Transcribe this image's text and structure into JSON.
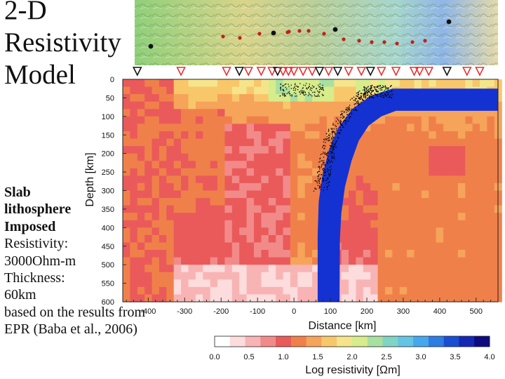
{
  "slide": {
    "title_lines": [
      "2-D",
      "Resistivity",
      "Model"
    ],
    "bold_lines": [
      "Slab",
      "lithosphere",
      "Imposed"
    ],
    "plain_lines": [
      "Resistivity:",
      "3000Ohm-m",
      "Thickness:",
      "60km",
      "based on the results from",
      "EPR (Baba et al., 2006)"
    ]
  },
  "colors": {
    "slab": "#1432d2",
    "station_red": "#e83030",
    "station_black": "#111111",
    "hypocenter": "#000000",
    "colorbar": [
      "#ffffff",
      "#fcdcdc",
      "#f8b4b4",
      "#f28a8a",
      "#ea5a5a",
      "#f0804a",
      "#f5a45a",
      "#f8c76a",
      "#f5e48a",
      "#d7ec8a",
      "#a8e0a0",
      "#80d4c4",
      "#64c4e4",
      "#46a8ec",
      "#2c7ce4",
      "#1a4ed2",
      "#1428b4",
      "#0e0a80"
    ]
  },
  "chart_data": {
    "type": "heatmap",
    "xlabel": "Distance [km]",
    "ylabel": "Depth [km]",
    "x_ticks": [
      "-400",
      "-300",
      "-200",
      "-100",
      "0",
      "100",
      "200",
      "300",
      "400",
      "500"
    ],
    "y_ticks": [
      "0",
      "50",
      "100",
      "150",
      "200",
      "250",
      "300",
      "350",
      "400",
      "450",
      "500",
      "550",
      "600"
    ],
    "xlim": [
      -470,
      560
    ],
    "ylim": [
      600,
      0
    ],
    "colorbar": {
      "label": "Log resistivity [Ωm]",
      "ticks": [
        "0.0",
        "0.5",
        "1.0",
        "1.5",
        "2.0",
        "2.5",
        "3.0",
        "3.5",
        "4.0"
      ],
      "range": [
        0.0,
        4.0
      ]
    },
    "slab": {
      "log_resistivity": 3.48,
      "thickness_km": 60,
      "bottom_x_km": [
        65,
        125
      ],
      "surface_x_km": [
        170,
        560
      ]
    },
    "body_regions": [
      {
        "x": [
          -470,
          -330
        ],
        "depth": [
          0,
          600
        ],
        "value": 1.1
      },
      {
        "x": [
          -330,
          -190
        ],
        "depth": [
          80,
          300
        ],
        "value": 1.15
      },
      {
        "x": [
          -190,
          -20
        ],
        "depth": [
          120,
          480
        ],
        "value": 0.9
      },
      {
        "x": [
          -20,
          60
        ],
        "depth": [
          200,
          500
        ],
        "value": 1.3
      },
      {
        "x": [
          230,
          560
        ],
        "depth": [
          150,
          600
        ],
        "value": 1.25
      },
      {
        "x": [
          360,
          460
        ],
        "depth": [
          170,
          260
        ],
        "value": 1.0
      }
    ],
    "stations": [
      {
        "x": -430,
        "type": "black"
      },
      {
        "x": -310,
        "type": "red"
      },
      {
        "x": -185,
        "type": "red"
      },
      {
        "x": -150,
        "type": "black"
      },
      {
        "x": -125,
        "type": "red"
      },
      {
        "x": -90,
        "type": "red"
      },
      {
        "x": -60,
        "type": "red"
      },
      {
        "x": -45,
        "type": "black"
      },
      {
        "x": -30,
        "type": "red"
      },
      {
        "x": -15,
        "type": "red"
      },
      {
        "x": 0,
        "type": "red"
      },
      {
        "x": 25,
        "type": "red"
      },
      {
        "x": 50,
        "type": "red"
      },
      {
        "x": 70,
        "type": "black"
      },
      {
        "x": 95,
        "type": "red"
      },
      {
        "x": 120,
        "type": "black"
      },
      {
        "x": 150,
        "type": "red"
      },
      {
        "x": 185,
        "type": "red"
      },
      {
        "x": 210,
        "type": "black"
      },
      {
        "x": 240,
        "type": "red"
      },
      {
        "x": 280,
        "type": "red"
      },
      {
        "x": 330,
        "type": "red"
      },
      {
        "x": 345,
        "type": "red"
      },
      {
        "x": 370,
        "type": "red"
      },
      {
        "x": 420,
        "type": "black"
      },
      {
        "x": 475,
        "type": "red"
      },
      {
        "x": 510,
        "type": "red"
      }
    ]
  }
}
